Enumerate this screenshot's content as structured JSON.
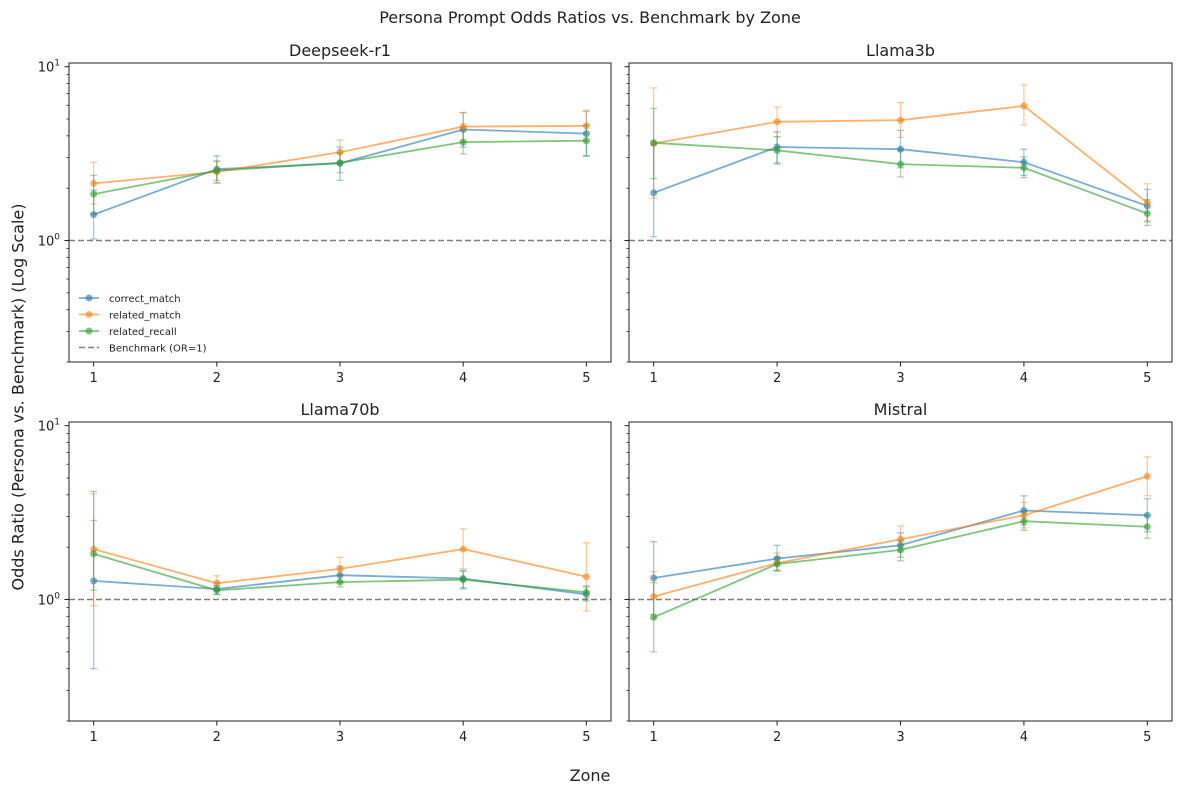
{
  "figure": {
    "suptitle": "Persona Prompt Odds Ratios vs. Benchmark by Zone",
    "xlabel": "Zone",
    "ylabel": "Odds Ratio (Persona vs. Benchmark) (Log Scale)"
  },
  "colors": {
    "correct_match": "#1f77b4",
    "related_match": "#ff7f0e",
    "related_recall": "#2ca02c",
    "benchmark": "#808080"
  },
  "chart_data": [
    {
      "type": "line",
      "title": "Deepseek-r1",
      "x": [
        1,
        2,
        3,
        4,
        5
      ],
      "x_ticks": [
        "1",
        "2",
        "3",
        "4",
        "5"
      ],
      "y_scale": "log",
      "ylim": [
        0.2,
        10.5
      ],
      "y_ticks": [
        "10^0",
        "10^1"
      ],
      "legend": [
        "correct_match",
        "related_match",
        "related_recall",
        "Benchmark (OR=1)"
      ],
      "legend_placement": "lower-left",
      "benchmark": 1,
      "series": [
        {
          "name": "correct_match",
          "values": [
            1.41,
            2.57,
            2.78,
            4.35,
            4.12
          ],
          "lower": [
            1.02,
            2.15,
            2.22,
            3.45,
            3.08
          ],
          "upper": [
            1.95,
            3.07,
            3.45,
            5.45,
            5.52
          ]
        },
        {
          "name": "related_match",
          "values": [
            2.13,
            2.48,
            3.22,
            4.52,
            4.57
          ],
          "lower": [
            1.62,
            2.13,
            2.72,
            3.72,
            3.72
          ],
          "upper": [
            2.82,
            2.88,
            3.78,
            5.45,
            5.62
          ]
        },
        {
          "name": "related_recall",
          "values": [
            1.85,
            2.52,
            2.8,
            3.68,
            3.75
          ],
          "lower": [
            1.42,
            2.22,
            2.45,
            3.15,
            3.05
          ],
          "upper": [
            2.37,
            2.85,
            3.18,
            4.3,
            4.6
          ]
        }
      ]
    },
    {
      "type": "line",
      "title": "Llama3b",
      "x": [
        1,
        2,
        3,
        4,
        5
      ],
      "x_ticks": [
        "1",
        "2",
        "3",
        "4",
        "5"
      ],
      "y_scale": "log",
      "ylim": [
        0.2,
        10.5
      ],
      "benchmark": 1,
      "series": [
        {
          "name": "correct_match",
          "values": [
            1.88,
            3.45,
            3.35,
            2.82,
            1.58
          ],
          "lower": [
            1.05,
            2.8,
            2.62,
            2.37,
            1.28
          ],
          "upper": [
            3.55,
            4.22,
            4.3,
            3.35,
            1.97
          ]
        },
        {
          "name": "related_match",
          "values": [
            3.62,
            4.82,
            4.92,
            5.95,
            1.65
          ],
          "lower": [
            1.75,
            3.95,
            3.92,
            4.62,
            1.3
          ],
          "upper": [
            7.55,
            5.85,
            6.22,
            7.85,
            2.12
          ]
        },
        {
          "name": "related_recall",
          "values": [
            3.65,
            3.3,
            2.75,
            2.62,
            1.43
          ],
          "lower": [
            2.27,
            2.75,
            2.32,
            2.3,
            1.22
          ],
          "upper": [
            5.75,
            3.95,
            3.28,
            3.02,
            1.72
          ]
        }
      ]
    },
    {
      "type": "line",
      "title": "Llama70b",
      "x": [
        1,
        2,
        3,
        4,
        5
      ],
      "x_ticks": [
        "1",
        "2",
        "3",
        "4",
        "5"
      ],
      "y_scale": "log",
      "ylim": [
        0.2,
        10.5
      ],
      "y_ticks": [
        "10^0",
        "10^1"
      ],
      "benchmark": 1,
      "series": [
        {
          "name": "correct_match",
          "values": [
            1.28,
            1.15,
            1.38,
            1.32,
            1.07
          ],
          "lower": [
            0.4,
            1.07,
            1.25,
            1.15,
            0.98
          ],
          "upper": [
            4.18,
            1.25,
            1.55,
            1.47,
            1.18
          ]
        },
        {
          "name": "related_match",
          "values": [
            1.95,
            1.24,
            1.5,
            1.95,
            1.35
          ],
          "lower": [
            0.92,
            1.12,
            1.28,
            1.5,
            0.86
          ],
          "upper": [
            4.05,
            1.37,
            1.75,
            2.55,
            2.12
          ]
        },
        {
          "name": "related_recall",
          "values": [
            1.83,
            1.13,
            1.26,
            1.3,
            1.1
          ],
          "lower": [
            1.13,
            1.07,
            1.18,
            1.17,
            1.01
          ],
          "upper": [
            2.85,
            1.2,
            1.38,
            1.45,
            1.2
          ]
        }
      ]
    },
    {
      "type": "line",
      "title": "Mistral",
      "x": [
        1,
        2,
        3,
        4,
        5
      ],
      "x_ticks": [
        "1",
        "2",
        "3",
        "4",
        "5"
      ],
      "y_scale": "log",
      "ylim": [
        0.2,
        10.5
      ],
      "benchmark": 1,
      "series": [
        {
          "name": "correct_match",
          "values": [
            1.33,
            1.72,
            2.05,
            3.25,
            3.05
          ],
          "lower": [
            0.82,
            1.47,
            1.75,
            2.68,
            2.45
          ],
          "upper": [
            2.15,
            2.05,
            2.42,
            3.95,
            3.8
          ]
        },
        {
          "name": "related_match",
          "values": [
            1.04,
            1.62,
            2.22,
            3.05,
            5.12
          ],
          "lower": [
            0.78,
            1.45,
            1.88,
            2.58,
            3.95
          ],
          "upper": [
            1.45,
            1.85,
            2.65,
            3.62,
            6.62
          ]
        },
        {
          "name": "related_recall",
          "values": [
            0.79,
            1.6,
            1.93,
            2.82,
            2.62
          ],
          "lower": [
            0.5,
            1.47,
            1.67,
            2.5,
            2.25
          ],
          "upper": [
            1.25,
            1.75,
            2.18,
            3.18,
            3.05
          ]
        }
      ]
    }
  ]
}
